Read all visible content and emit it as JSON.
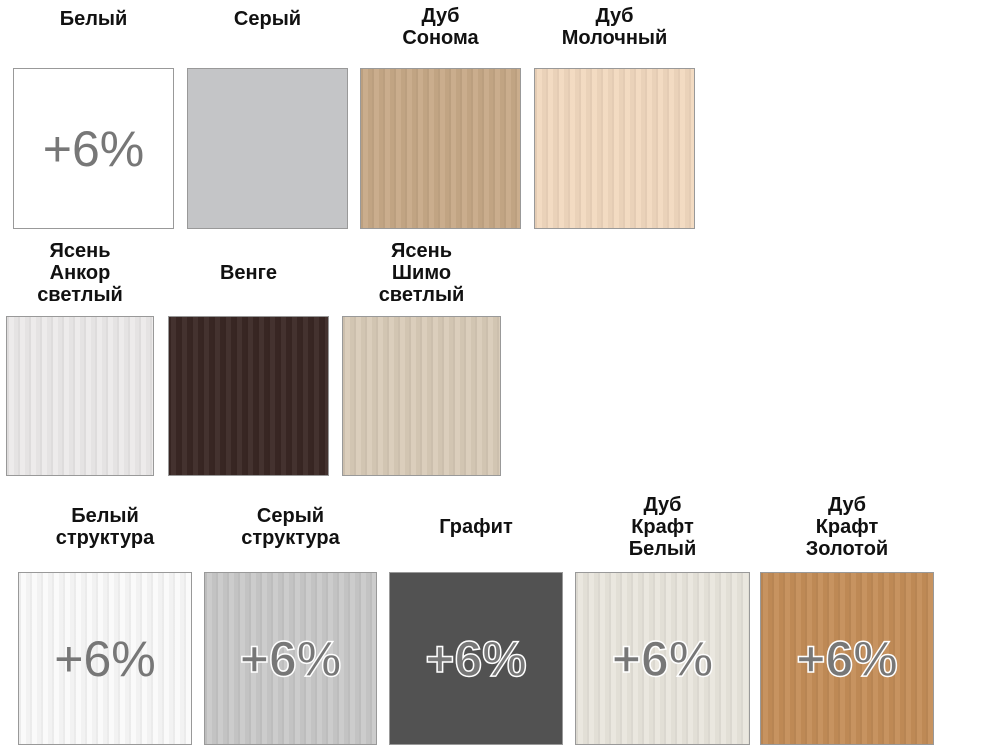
{
  "markup": "+6%",
  "swatches": [
    {
      "label": "Белый",
      "color": "#ffffff",
      "markup": true
    },
    {
      "label": "Серый",
      "color": "#c4c5c7",
      "markup": false
    },
    {
      "label": "Дуб\nСонома",
      "color": "#c7a987",
      "markup": false
    },
    {
      "label": "Дуб\nМолочный",
      "color": "#f2d9bf",
      "markup": false
    },
    {
      "label": "Ясень\nАнкор\nсветлый",
      "color": "#eceaea",
      "markup": false
    },
    {
      "label": "Венге",
      "color": "#3a2724",
      "markup": false
    },
    {
      "label": "Ясень\nШимо\nсветлый",
      "color": "#d9cbb8",
      "markup": false
    },
    {
      "label": "Белый\nструктура",
      "color": "#fafafa",
      "markup": true
    },
    {
      "label": "Серый\nструктура",
      "color": "#c9c9c9",
      "markup": true
    },
    {
      "label": "Графит",
      "color": "#525252",
      "markup": true
    },
    {
      "label": "Дуб\nКрафт\nБелый",
      "color": "#e9e6dd",
      "markup": true
    },
    {
      "label": "Дуб\nКрафт\nЗолотой",
      "color": "#c48d58",
      "markup": true
    }
  ]
}
